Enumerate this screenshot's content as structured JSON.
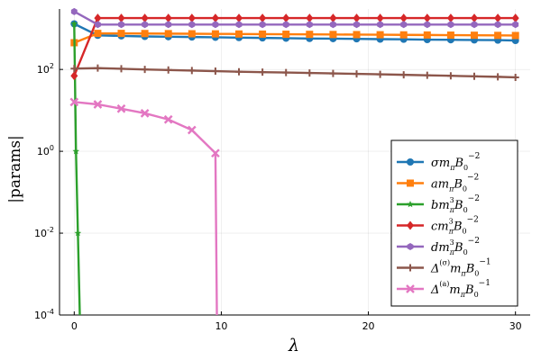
{
  "chart_data": {
    "type": "line",
    "xlabel": "λ",
    "ylabel": "|params|",
    "x_ticks": [
      0,
      10,
      20,
      30
    ],
    "x_tick_labels": [
      "0",
      "10",
      "20",
      "30"
    ],
    "y_ticks": [
      0.0001,
      0.01,
      1,
      100
    ],
    "y_tick_labels": [
      {
        "base": "10",
        "exp": "-4"
      },
      {
        "base": "10",
        "exp": "-2"
      },
      {
        "base": "10",
        "exp": "0"
      },
      {
        "base": "10",
        "exp": "2"
      }
    ],
    "xlim": [
      -1,
      31
    ],
    "ylim": [
      0.0001,
      3000
    ],
    "y_scale": "log",
    "grid": true,
    "legend_position": "bottom-right",
    "series": [
      {
        "name": "σ m_π B₀⁻²",
        "legend": {
          "main": "σm",
          "sub": "π",
          "b": "B",
          "b_sub": "0",
          "exp": "−2"
        },
        "color": "#1f77b4",
        "marker": "circle",
        "x": [
          0,
          1.6,
          3.2,
          4.8,
          6.4,
          8.0,
          9.6,
          11.2,
          12.8,
          14.4,
          16.0,
          17.6,
          19.2,
          20.8,
          22.4,
          24.0,
          25.6,
          27.2,
          28.8,
          30.0
        ],
        "y": [
          1300,
          680,
          660,
          640,
          630,
          620,
          610,
          600,
          590,
          580,
          570,
          565,
          560,
          550,
          545,
          535,
          530,
          525,
          520,
          510
        ]
      },
      {
        "name": "a m_π B₀⁻²",
        "legend": {
          "main": "am",
          "sub": "π",
          "b": "B",
          "b_sub": "0",
          "exp": "−2"
        },
        "color": "#ff7f0e",
        "marker": "square",
        "x": [
          0,
          1.6,
          3.2,
          4.8,
          6.4,
          8.0,
          9.6,
          11.2,
          12.8,
          14.4,
          16.0,
          17.6,
          19.2,
          20.8,
          22.4,
          24.0,
          25.6,
          27.2,
          28.8,
          30.0
        ],
        "y": [
          450,
          760,
          760,
          755,
          750,
          745,
          740,
          735,
          730,
          725,
          720,
          715,
          710,
          705,
          700,
          695,
          690,
          685,
          680,
          675
        ]
      },
      {
        "name": "b m_π³ B₀⁻²",
        "legend": {
          "main": "bm",
          "sub": "π",
          "sup": "3",
          "b": "B",
          "b_sub": "0",
          "exp": "−2"
        },
        "color": "#2ca02c",
        "marker": "star",
        "x": [
          0,
          0.12,
          0.25,
          0.38
        ],
        "y": [
          1300,
          1,
          0.01,
          0.0001
        ]
      },
      {
        "name": "c m_π³ B₀⁻²",
        "legend": {
          "main": "cm",
          "sub": "π",
          "sup": "3",
          "b": "B",
          "b_sub": "0",
          "exp": "−2"
        },
        "color": "#d62728",
        "marker": "diamond",
        "x": [
          0,
          1.6,
          3.2,
          4.8,
          6.4,
          8.0,
          9.6,
          11.2,
          12.8,
          14.4,
          16.0,
          17.6,
          19.2,
          20.8,
          22.4,
          24.0,
          25.6,
          27.2,
          28.8,
          30.0
        ],
        "y": [
          70,
          1800,
          1800,
          1800,
          1800,
          1800,
          1800,
          1800,
          1800,
          1800,
          1800,
          1800,
          1800,
          1800,
          1800,
          1800,
          1800,
          1800,
          1800,
          1800
        ]
      },
      {
        "name": "d m_π³ B₀⁻²",
        "legend": {
          "main": "dm",
          "sub": "π",
          "sup": "3",
          "b": "B",
          "b_sub": "0",
          "exp": "−2"
        },
        "color": "#9467bd",
        "marker": "hexagon",
        "x": [
          0,
          1.6,
          3.2,
          4.8,
          6.4,
          8.0,
          9.6,
          11.2,
          12.8,
          14.4,
          16.0,
          17.6,
          19.2,
          20.8,
          22.4,
          24.0,
          25.6,
          27.2,
          28.8,
          30.0
        ],
        "y": [
          2600,
          1250,
          1250,
          1250,
          1250,
          1250,
          1250,
          1250,
          1250,
          1250,
          1250,
          1250,
          1250,
          1250,
          1250,
          1250,
          1250,
          1250,
          1250,
          1250
        ]
      },
      {
        "name": "Δ^(σ) m_π B₀⁻¹",
        "legend": {
          "main": "Δ",
          "pre_sup": "(σ)",
          "tail": "m",
          "sub": "π",
          "b": "B",
          "b_sub": "0",
          "exp": "−1"
        },
        "color": "#8c564b",
        "marker": "cross",
        "x": [
          0,
          1.6,
          3.2,
          4.8,
          6.4,
          8.0,
          9.6,
          11.2,
          12.8,
          14.4,
          16.0,
          17.6,
          19.2,
          20.8,
          22.4,
          24.0,
          25.6,
          27.2,
          28.8,
          30.0
        ],
        "y": [
          105,
          108,
          104,
          100,
          97,
          94,
          91,
          88,
          86,
          84,
          82,
          80,
          78,
          76,
          74,
          72,
          70,
          68,
          66,
          64
        ]
      },
      {
        "name": "Δ^(a) m_π B₀⁻¹",
        "legend": {
          "main": "Δ",
          "pre_sup": "(a)",
          "tail": "m",
          "sub": "π",
          "b": "B",
          "b_sub": "0",
          "exp": "−1"
        },
        "color": "#e377c2",
        "marker": "x",
        "x": [
          0,
          1.6,
          3.2,
          4.8,
          6.4,
          8.0,
          9.6,
          9.7
        ],
        "y": [
          16,
          14,
          11,
          8.5,
          6,
          3.3,
          0.9,
          0.0001
        ]
      }
    ]
  }
}
